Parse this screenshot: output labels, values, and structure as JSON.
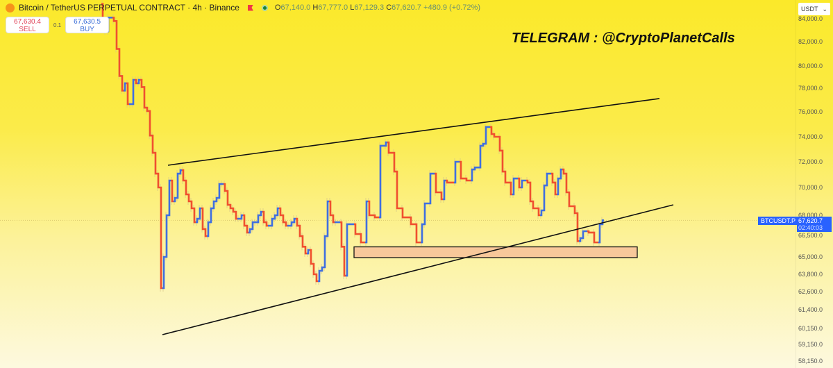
{
  "header": {
    "title": "Bitcoin / TetherUS PERPETUAL CONTRACT · 4h · Binance",
    "ohlc": {
      "o_label": "O",
      "o": "67,140.0",
      "h_label": "H",
      "h": "67,777.0",
      "l_label": "L",
      "l": "67,129.3",
      "c_label": "C",
      "c": "67,620.7",
      "change": "+480.9 (+0.72%)"
    }
  },
  "trade": {
    "sell_price": "67,630.4",
    "sell_label": "SELL",
    "qty": "0.1",
    "buy_price": "67,630.5",
    "buy_label": "BUY"
  },
  "watermark": "TELEGRAM : @CryptoPlanetCalls",
  "currency": "USDT",
  "price_label": {
    "symbol": "BTCUSDT.P",
    "price": "67,620.7",
    "countdown": "02:40:03"
  },
  "colors": {
    "up": "#3f6fe0",
    "down": "#f0502e",
    "drawing": "#111111",
    "zone": "#f8c89a",
    "label": "#2962ff"
  },
  "chart_data": {
    "type": "candlestick",
    "title": "",
    "xlabel": "",
    "ylabel": "",
    "y_ticks": [
      84000,
      82000,
      80000,
      78000,
      76000,
      74000,
      72000,
      70000,
      68000,
      66500,
      65000,
      63800,
      62600,
      61400,
      60150,
      59150,
      58150
    ],
    "y_tick_labels": [
      "84,000.0",
      "82,000.0",
      "80,000.0",
      "78,000.0",
      "76,000.0",
      "74,000.0",
      "72,000.0",
      "70,000.0",
      "68,000.0",
      "66,500.0",
      "65,000.0",
      "63,800.0",
      "62,600.0",
      "61,400.0",
      "60,150.0",
      "59,150.0",
      "58,150.0"
    ],
    "closes_by_bar": [
      [
        0,
        85300
      ],
      [
        1,
        83800
      ],
      [
        2,
        82900
      ],
      [
        4,
        84100
      ],
      [
        5,
        83800
      ],
      [
        6,
        81400
      ],
      [
        7,
        79100
      ],
      [
        8,
        77800
      ],
      [
        9,
        78440
      ],
      [
        10,
        76650
      ],
      [
        11,
        76650
      ],
      [
        12,
        78750
      ],
      [
        13,
        78440
      ],
      [
        14,
        78750
      ],
      [
        15,
        78100
      ],
      [
        16,
        76350
      ],
      [
        17,
        76060
      ],
      [
        18,
        74100
      ],
      [
        19,
        72720
      ],
      [
        20,
        71080
      ],
      [
        21,
        70000
      ],
      [
        22,
        62840
      ],
      [
        23,
        65000
      ],
      [
        24,
        68000
      ],
      [
        25,
        70540
      ],
      [
        26,
        69000
      ],
      [
        27,
        69250
      ],
      [
        28,
        71080
      ],
      [
        29,
        71350
      ],
      [
        30,
        70540
      ],
      [
        31,
        69500
      ],
      [
        32,
        69000
      ],
      [
        33,
        68500
      ],
      [
        34,
        67480
      ],
      [
        35,
        67740
      ],
      [
        36,
        68500
      ],
      [
        37,
        66970
      ],
      [
        38,
        66450
      ],
      [
        39,
        67480
      ],
      [
        40,
        68500
      ],
      [
        41,
        69000
      ],
      [
        42,
        69250
      ],
      [
        43,
        70270
      ],
      [
        44,
        70270
      ],
      [
        45,
        69750
      ],
      [
        46,
        68750
      ],
      [
        47,
        68500
      ],
      [
        48,
        68250
      ],
      [
        49,
        67740
      ],
      [
        50,
        67740
      ],
      [
        51,
        68000
      ],
      [
        52,
        67220
      ],
      [
        53,
        66710
      ],
      [
        54,
        66970
      ],
      [
        55,
        67480
      ],
      [
        56,
        67480
      ],
      [
        57,
        68000
      ],
      [
        58,
        68250
      ],
      [
        59,
        67480
      ],
      [
        60,
        67220
      ],
      [
        61,
        67220
      ],
      [
        62,
        67740
      ],
      [
        63,
        68000
      ],
      [
        64,
        68500
      ],
      [
        65,
        68000
      ],
      [
        66,
        67480
      ],
      [
        67,
        67220
      ],
      [
        68,
        67220
      ],
      [
        69,
        67480
      ],
      [
        70,
        67740
      ],
      [
        71,
        67220
      ],
      [
        72,
        66450
      ],
      [
        73,
        65710
      ],
      [
        74,
        65240
      ],
      [
        75,
        65480
      ],
      [
        76,
        64520
      ],
      [
        77,
        63800
      ],
      [
        78,
        63320
      ],
      [
        79,
        64040
      ],
      [
        80,
        64280
      ],
      [
        81,
        66450
      ],
      [
        82,
        69000
      ],
      [
        83,
        68000
      ],
      [
        84,
        67480
      ],
      [
        86,
        67480
      ],
      [
        87,
        65710
      ],
      [
        88,
        63700
      ],
      [
        91,
        67330
      ],
      [
        93,
        66600
      ],
      [
        95,
        66010
      ],
      [
        96,
        69000
      ],
      [
        98,
        68000
      ],
      [
        100,
        67840
      ],
      [
        102,
        73280
      ],
      [
        103,
        73550
      ],
      [
        105,
        72720
      ],
      [
        106,
        71240
      ],
      [
        108,
        68500
      ],
      [
        111,
        67840
      ],
      [
        113,
        67330
      ],
      [
        115,
        66010
      ],
      [
        116,
        67330
      ],
      [
        118,
        68850
      ],
      [
        120,
        71080
      ],
      [
        122,
        69650
      ],
      [
        123,
        69150
      ],
      [
        124,
        70540
      ],
      [
        127,
        70380
      ],
      [
        129,
        72000
      ],
      [
        131,
        70700
      ],
      [
        133,
        70540
      ],
      [
        134,
        71400
      ],
      [
        136,
        71560
      ],
      [
        137,
        73280
      ],
      [
        138,
        73440
      ],
      [
        140,
        74780
      ],
      [
        141,
        74220
      ],
      [
        143,
        74000
      ],
      [
        144,
        72890
      ],
      [
        145,
        71240
      ],
      [
        147,
        70380
      ],
      [
        148,
        69500
      ],
      [
        150,
        70700
      ],
      [
        151,
        70000
      ],
      [
        153,
        70540
      ],
      [
        154,
        70380
      ],
      [
        155,
        69000
      ],
      [
        157,
        68500
      ],
      [
        158,
        68000
      ],
      [
        159,
        68350
      ],
      [
        160,
        70160
      ],
      [
        162,
        71080
      ],
      [
        163,
        70380
      ],
      [
        164,
        69500
      ],
      [
        165,
        70700
      ],
      [
        166,
        71400
      ],
      [
        167,
        71080
      ],
      [
        168,
        69650
      ],
      [
        170,
        68650
      ],
      [
        171,
        68150
      ],
      [
        172,
        66100
      ],
      [
        173,
        66310
      ],
      [
        175,
        66810
      ],
      [
        177,
        66710
      ],
      [
        179,
        66010
      ],
      [
        180,
        67330
      ],
      [
        181,
        67620.7
      ]
    ],
    "last_price": 67620.7,
    "drawings": [
      {
        "kind": "trendline",
        "from": [
          24,
          71730
        ],
        "to": [
          201,
          77120
        ]
      },
      {
        "kind": "trendline",
        "from": [
          22,
          59760
        ],
        "to": [
          206,
          68750
        ]
      },
      {
        "kind": "zone",
        "from_bar": 91,
        "to_bar": 193,
        "top": 65700,
        "bottom": 64950
      }
    ]
  }
}
